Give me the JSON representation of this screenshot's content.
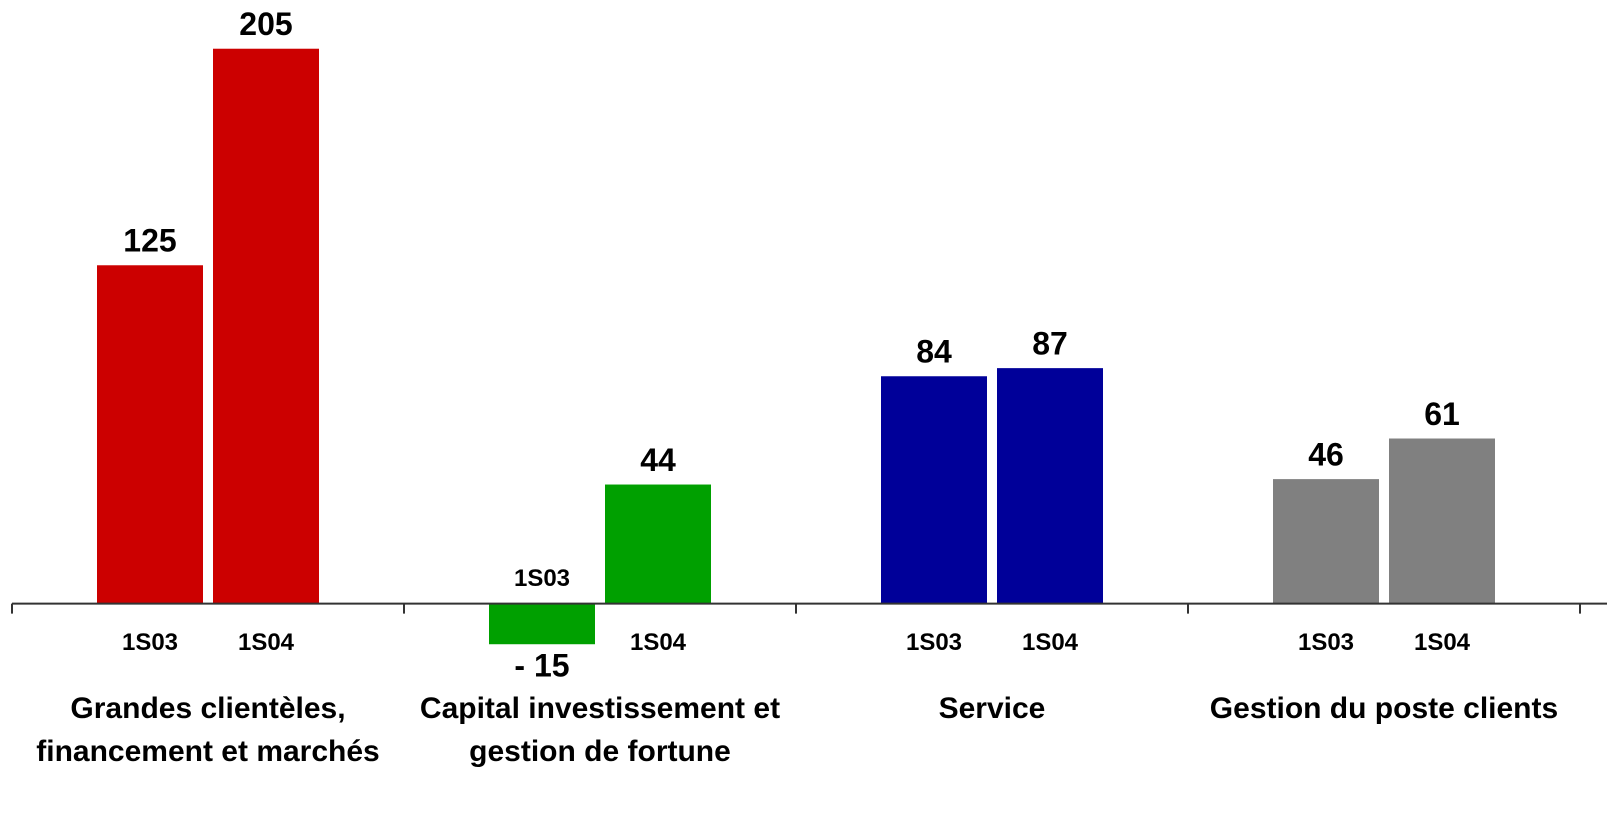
{
  "chart_data": {
    "type": "bar",
    "categories": [
      "Grandes clientèles, financement et marchés",
      "Capital investissement et gestion de fortune",
      "Service",
      "Gestion du poste clients"
    ],
    "colors": [
      "#cc0000",
      "#00a000",
      "#000099",
      "#808080"
    ],
    "series": [
      {
        "name": "1S03",
        "values": [
          125,
          -15,
          84,
          46
        ],
        "value_labels": [
          "125",
          "- 15",
          "84",
          "46"
        ]
      },
      {
        "name": "1S04",
        "values": [
          205,
          44,
          87,
          61
        ]
      }
    ],
    "ylim": [
      -84,
      223
    ]
  }
}
